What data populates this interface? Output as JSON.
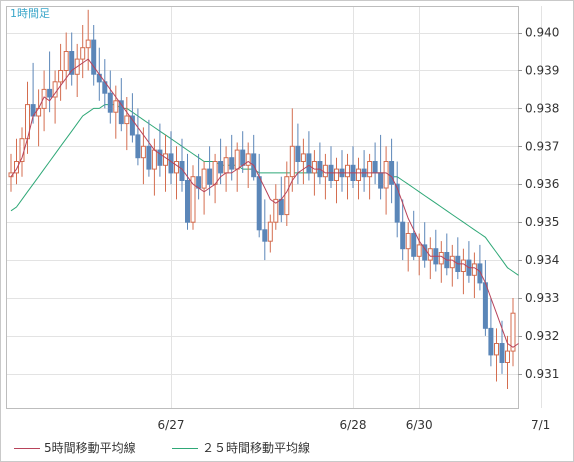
{
  "chart_data": {
    "type": "candlestick",
    "period_label": "1時間足",
    "y_ticks": [
      "0.940",
      "0.939",
      "0.938",
      "0.937",
      "0.936",
      "0.935",
      "0.934",
      "0.933",
      "0.932",
      "0.931"
    ],
    "y_tick_values": [
      0.94,
      0.939,
      0.938,
      0.937,
      0.936,
      0.935,
      0.934,
      0.933,
      0.932,
      0.931
    ],
    "ylim": [
      0.9301,
      0.9407
    ],
    "x_ticks": [
      "6/27",
      "6/28",
      "6/30",
      "7/1"
    ],
    "x_tick_indices": [
      29,
      62,
      74,
      96
    ],
    "series": [
      {
        "name": "5時間移動平均線",
        "color": "#b8435a"
      },
      {
        "name": "２５時間移動平均線",
        "color": "#2fa877"
      }
    ],
    "up_color": "#d46d4f",
    "down_color": "#5b86b8",
    "grid": true,
    "candles": [
      [
        0.9362,
        0.9368,
        0.9358,
        0.9363
      ],
      [
        0.9363,
        0.9372,
        0.936,
        0.9366
      ],
      [
        0.9366,
        0.9375,
        0.9362,
        0.9372
      ],
      [
        0.9372,
        0.9387,
        0.9368,
        0.9381
      ],
      [
        0.9381,
        0.9392,
        0.9376,
        0.9378
      ],
      [
        0.9378,
        0.9385,
        0.937,
        0.938
      ],
      [
        0.938,
        0.939,
        0.9374,
        0.9385
      ],
      [
        0.9385,
        0.9395,
        0.9379,
        0.9383
      ],
      [
        0.9383,
        0.939,
        0.9376,
        0.9387
      ],
      [
        0.9387,
        0.9397,
        0.9382,
        0.939
      ],
      [
        0.939,
        0.94,
        0.9385,
        0.9395
      ],
      [
        0.9395,
        0.94,
        0.9386,
        0.9389
      ],
      [
        0.9389,
        0.9397,
        0.9383,
        0.9393
      ],
      [
        0.9393,
        0.9402,
        0.9388,
        0.9396
      ],
      [
        0.9396,
        0.9406,
        0.939,
        0.9398
      ],
      [
        0.9398,
        0.9402,
        0.9386,
        0.9389
      ],
      [
        0.9389,
        0.9396,
        0.9382,
        0.9387
      ],
      [
        0.9387,
        0.9393,
        0.938,
        0.9384
      ],
      [
        0.9384,
        0.939,
        0.9376,
        0.9379
      ],
      [
        0.9379,
        0.9386,
        0.9372,
        0.9382
      ],
      [
        0.9382,
        0.9388,
        0.9374,
        0.9376
      ],
      [
        0.9376,
        0.9383,
        0.9369,
        0.9378
      ],
      [
        0.9378,
        0.9384,
        0.9371,
        0.9373
      ],
      [
        0.9373,
        0.938,
        0.9365,
        0.9367
      ],
      [
        0.9367,
        0.9375,
        0.936,
        0.937
      ],
      [
        0.937,
        0.9377,
        0.9362,
        0.9364
      ],
      [
        0.9364,
        0.9372,
        0.9357,
        0.9369
      ],
      [
        0.9369,
        0.9376,
        0.9362,
        0.9365
      ],
      [
        0.9365,
        0.9373,
        0.9358,
        0.9368
      ],
      [
        0.9368,
        0.9374,
        0.936,
        0.9363
      ],
      [
        0.9363,
        0.937,
        0.9356,
        0.9366
      ],
      [
        0.9366,
        0.9372,
        0.9358,
        0.9361
      ],
      [
        0.9361,
        0.9368,
        0.9348,
        0.935
      ],
      [
        0.935,
        0.9365,
        0.9348,
        0.9362
      ],
      [
        0.9362,
        0.9368,
        0.9356,
        0.9359
      ],
      [
        0.9359,
        0.9366,
        0.9352,
        0.9364
      ],
      [
        0.9364,
        0.937,
        0.9357,
        0.936
      ],
      [
        0.936,
        0.9368,
        0.9355,
        0.9366
      ],
      [
        0.9366,
        0.9372,
        0.936,
        0.9363
      ],
      [
        0.9363,
        0.937,
        0.9358,
        0.9367
      ],
      [
        0.9367,
        0.9373,
        0.9361,
        0.9364
      ],
      [
        0.9364,
        0.9371,
        0.9358,
        0.9369
      ],
      [
        0.9369,
        0.9374,
        0.9363,
        0.9365
      ],
      [
        0.9365,
        0.9371,
        0.9359,
        0.9368
      ],
      [
        0.9368,
        0.9373,
        0.9361,
        0.9362
      ],
      [
        0.9362,
        0.9368,
        0.9346,
        0.9348
      ],
      [
        0.9348,
        0.9356,
        0.934,
        0.9345
      ],
      [
        0.9345,
        0.9352,
        0.9342,
        0.935
      ],
      [
        0.935,
        0.936,
        0.9348,
        0.9356
      ],
      [
        0.9356,
        0.9362,
        0.935,
        0.9352
      ],
      [
        0.9352,
        0.9366,
        0.9349,
        0.9362
      ],
      [
        0.9362,
        0.938,
        0.9358,
        0.937
      ],
      [
        0.937,
        0.9376,
        0.936,
        0.9366
      ],
      [
        0.9366,
        0.9372,
        0.936,
        0.9368
      ],
      [
        0.9368,
        0.9374,
        0.9361,
        0.9363
      ],
      [
        0.9363,
        0.9369,
        0.9357,
        0.9366
      ],
      [
        0.9366,
        0.9371,
        0.936,
        0.9362
      ],
      [
        0.9362,
        0.9368,
        0.9356,
        0.9365
      ],
      [
        0.9365,
        0.937,
        0.9359,
        0.9361
      ],
      [
        0.9361,
        0.9367,
        0.9355,
        0.9364
      ],
      [
        0.9364,
        0.9369,
        0.9358,
        0.9362
      ],
      [
        0.9362,
        0.9368,
        0.9356,
        0.9365
      ],
      [
        0.9365,
        0.937,
        0.9359,
        0.9361
      ],
      [
        0.9361,
        0.9367,
        0.9356,
        0.9364
      ],
      [
        0.9364,
        0.9369,
        0.9358,
        0.9362
      ],
      [
        0.9362,
        0.9368,
        0.9356,
        0.9366
      ],
      [
        0.9366,
        0.9371,
        0.936,
        0.9363
      ],
      [
        0.9363,
        0.9373,
        0.9356,
        0.9359
      ],
      [
        0.9359,
        0.937,
        0.9352,
        0.9366
      ],
      [
        0.9366,
        0.9372,
        0.9355,
        0.936
      ],
      [
        0.936,
        0.9366,
        0.9346,
        0.935
      ],
      [
        0.935,
        0.9356,
        0.934,
        0.9343
      ],
      [
        0.9343,
        0.935,
        0.9337,
        0.9347
      ],
      [
        0.9347,
        0.9353,
        0.934,
        0.9341
      ],
      [
        0.9341,
        0.9347,
        0.9336,
        0.9344
      ],
      [
        0.9344,
        0.935,
        0.9338,
        0.934
      ],
      [
        0.934,
        0.9346,
        0.9335,
        0.9343
      ],
      [
        0.9343,
        0.9348,
        0.9337,
        0.9339
      ],
      [
        0.9339,
        0.9345,
        0.9334,
        0.9342
      ],
      [
        0.9342,
        0.9347,
        0.9336,
        0.9338
      ],
      [
        0.9338,
        0.9344,
        0.9333,
        0.9341
      ],
      [
        0.9341,
        0.9346,
        0.9335,
        0.9337
      ],
      [
        0.9337,
        0.9343,
        0.9331,
        0.934
      ],
      [
        0.934,
        0.9345,
        0.9334,
        0.9336
      ],
      [
        0.9336,
        0.9342,
        0.933,
        0.9339
      ],
      [
        0.9339,
        0.9344,
        0.9332,
        0.9334
      ],
      [
        0.9334,
        0.934,
        0.932,
        0.9322
      ],
      [
        0.9322,
        0.933,
        0.9312,
        0.9315
      ],
      [
        0.9315,
        0.9322,
        0.9308,
        0.9318
      ],
      [
        0.9318,
        0.9324,
        0.931,
        0.9313
      ],
      [
        0.9313,
        0.932,
        0.9306,
        0.9316
      ],
      [
        0.9316,
        0.933,
        0.9312,
        0.9326
      ]
    ],
    "ma5": [
      0.9362,
      0.9364,
      0.9367,
      0.9372,
      0.9378,
      0.938,
      0.9383,
      0.9382,
      0.9384,
      0.9386,
      0.9388,
      0.939,
      0.9391,
      0.9392,
      0.9393,
      0.9391,
      0.9389,
      0.9387,
      0.9385,
      0.9383,
      0.9381,
      0.9379,
      0.9377,
      0.9375,
      0.9373,
      0.9371,
      0.9369,
      0.9368,
      0.9367,
      0.9366,
      0.9365,
      0.9364,
      0.9362,
      0.936,
      0.9359,
      0.9358,
      0.9359,
      0.936,
      0.9362,
      0.9363,
      0.9363,
      0.9364,
      0.9365,
      0.9366,
      0.9365,
      0.9362,
      0.9359,
      0.9356,
      0.9355,
      0.9356,
      0.9358,
      0.9361,
      0.9363,
      0.9364,
      0.9365,
      0.9364,
      0.9364,
      0.9363,
      0.9363,
      0.9363,
      0.9363,
      0.9363,
      0.9363,
      0.9363,
      0.9363,
      0.9363,
      0.9363,
      0.9363,
      0.9363,
      0.9362,
      0.9359,
      0.9355,
      0.9351,
      0.9348,
      0.9345,
      0.9343,
      0.9341,
      0.9341,
      0.9341,
      0.934,
      0.934,
      0.9339,
      0.9339,
      0.9338,
      0.9338,
      0.9337,
      0.9334,
      0.933,
      0.9326,
      0.9322,
      0.9318,
      0.9317,
      0.9318
    ],
    "ma25": [
      0.9353,
      0.9354,
      0.9356,
      0.9358,
      0.936,
      0.9362,
      0.9364,
      0.9366,
      0.9368,
      0.937,
      0.9372,
      0.9374,
      0.9376,
      0.9378,
      0.9379,
      0.938,
      0.938,
      0.9381,
      0.9381,
      0.9381,
      0.938,
      0.938,
      0.9379,
      0.9378,
      0.9377,
      0.9376,
      0.9375,
      0.9374,
      0.9373,
      0.9372,
      0.9371,
      0.937,
      0.9369,
      0.9368,
      0.9367,
      0.9366,
      0.9366,
      0.9366,
      0.9365,
      0.9365,
      0.9365,
      0.9365,
      0.9364,
      0.9364,
      0.9364,
      0.9363,
      0.9363,
      0.9363,
      0.9363,
      0.9363,
      0.9363,
      0.9363,
      0.9363,
      0.9363,
      0.9363,
      0.9363,
      0.9363,
      0.9363,
      0.9363,
      0.9363,
      0.9363,
      0.9363,
      0.9363,
      0.9363,
      0.9363,
      0.9363,
      0.9363,
      0.9363,
      0.9363,
      0.9362,
      0.9362,
      0.9361,
      0.936,
      0.9359,
      0.9358,
      0.9357,
      0.9356,
      0.9355,
      0.9354,
      0.9353,
      0.9352,
      0.9351,
      0.935,
      0.9349,
      0.9348,
      0.9347,
      0.9346,
      0.9344,
      0.9342,
      0.934,
      0.9338,
      0.9337,
      0.9336
    ]
  }
}
